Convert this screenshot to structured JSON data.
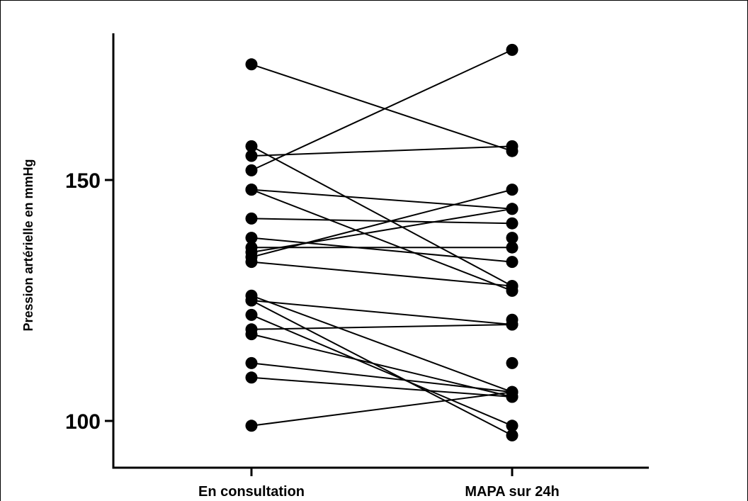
{
  "chart_data": {
    "type": "line",
    "title": "",
    "xlabel": "",
    "ylabel": "Pression artérielle en mmHg",
    "ylim": [
      90,
      180
    ],
    "yticks": [
      {
        "value": 100,
        "label": "100"
      },
      {
        "value": 150,
        "label": "150"
      }
    ],
    "categories": [
      "En consultation",
      "MAPA sur 24h"
    ],
    "grid": false,
    "legend": "none",
    "pairs": [
      [
        174,
        156
      ],
      [
        157,
        128
      ],
      [
        155,
        157
      ],
      [
        152,
        177
      ],
      [
        148,
        144
      ],
      [
        148,
        127
      ],
      [
        142,
        141
      ],
      [
        138,
        133
      ],
      [
        136,
        136
      ],
      [
        135,
        144
      ],
      [
        134,
        148
      ],
      [
        133,
        128
      ],
      [
        126,
        106
      ],
      [
        125,
        120
      ],
      [
        125,
        97
      ],
      [
        122,
        99
      ],
      [
        119,
        120
      ],
      [
        118,
        105
      ],
      [
        112,
        106
      ],
      [
        109,
        105
      ],
      [
        99,
        106
      ]
    ],
    "extra_points": [
      {
        "category": "MAPA sur 24h",
        "value": 138
      },
      {
        "category": "MAPA sur 24h",
        "value": 121
      },
      {
        "category": "MAPA sur 24h",
        "value": 112
      }
    ],
    "colors": {
      "marks": "#000000"
    }
  }
}
